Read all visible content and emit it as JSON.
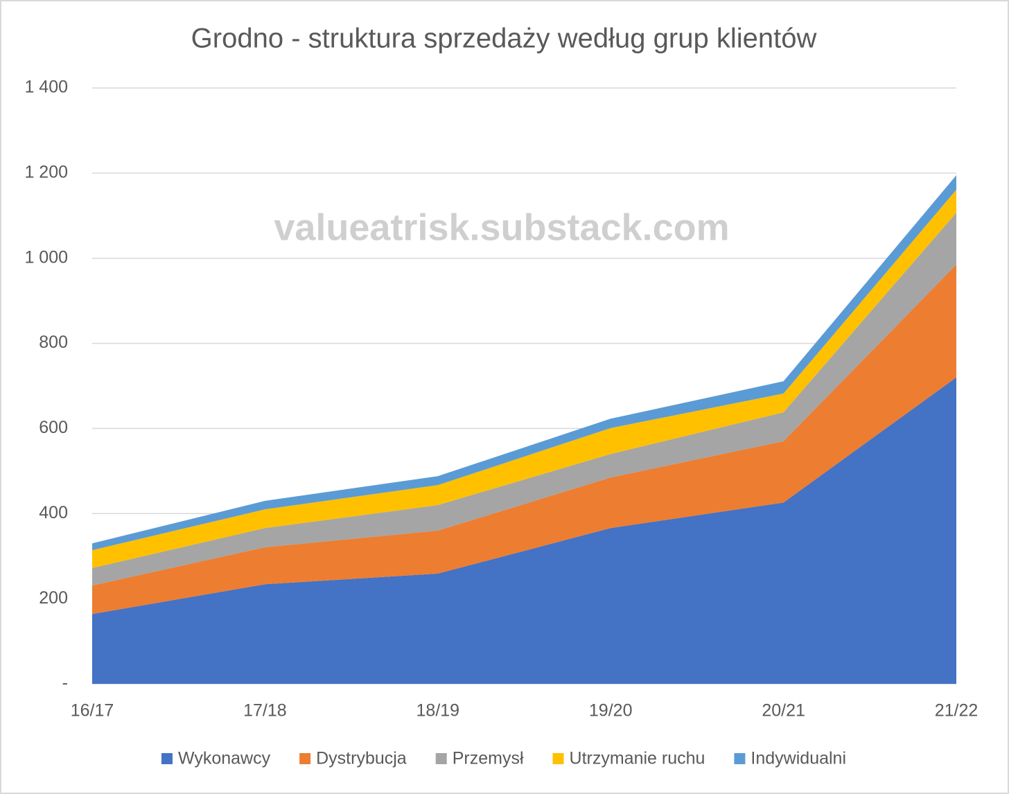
{
  "chart_data": {
    "type": "stacked-area",
    "title": "Grodno - struktura sprzedaży według grup klientów",
    "watermark": "valueatrisk.substack.com",
    "categories": [
      "16/17",
      "17/18",
      "18/19",
      "19/20",
      "20/21",
      "21/22"
    ],
    "series": [
      {
        "name": "Wykonawcy",
        "color": "#4472c4",
        "values": [
          164,
          234,
          259,
          366,
          426,
          720
        ]
      },
      {
        "name": "Dystrybucja",
        "color": "#ed7d31",
        "values": [
          67,
          87,
          101,
          119,
          144,
          265
        ]
      },
      {
        "name": "Przemysł",
        "color": "#a5a5a5",
        "values": [
          41,
          45,
          60,
          55,
          68,
          122
        ]
      },
      {
        "name": "Utrzymanie ruchu",
        "color": "#ffc000",
        "values": [
          42,
          44,
          47,
          61,
          44,
          54
        ]
      },
      {
        "name": "Indywidualni",
        "color": "#5b9bd5",
        "values": [
          16,
          20,
          21,
          22,
          29,
          34
        ]
      }
    ],
    "ylim": [
      0,
      1400
    ],
    "yticks": [
      {
        "value": 0,
        "label": "-"
      },
      200,
      400,
      600,
      800,
      {
        "value": 1000,
        "label": "1 000"
      },
      {
        "value": 1200,
        "label": "1 200"
      },
      {
        "value": 1400,
        "label": "1 400"
      }
    ],
    "grid": true,
    "legend": "bottom"
  }
}
